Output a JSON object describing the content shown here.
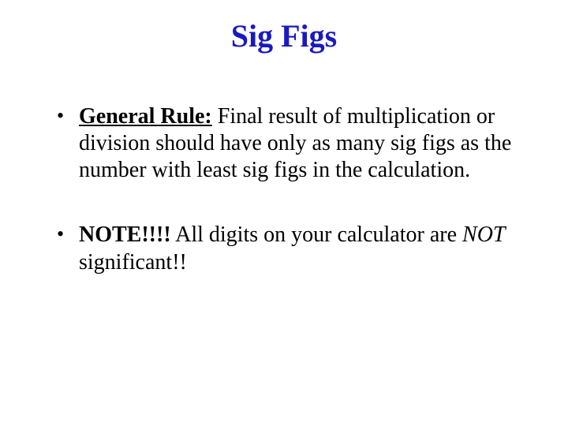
{
  "slide": {
    "title": "Sig Figs",
    "title_color": "#1a1ac0",
    "background": "#ffffff",
    "text_color": "#000000",
    "font_family": "Times New Roman",
    "title_fontsize": 40,
    "body_fontsize": 28,
    "bullets": [
      {
        "lead": "General Rule:",
        "lead_style": "bold-underline",
        "rest": " Final result of multiplication or division should have only as many sig figs as the number with least sig figs in the calculation."
      },
      {
        "lead": "NOTE!!!!",
        "lead_style": "bold",
        "rest_prefix": " All digits on your calculator are ",
        "emph": "NOT",
        "emph_style": "italic",
        "rest_suffix": " significant!!"
      }
    ]
  }
}
